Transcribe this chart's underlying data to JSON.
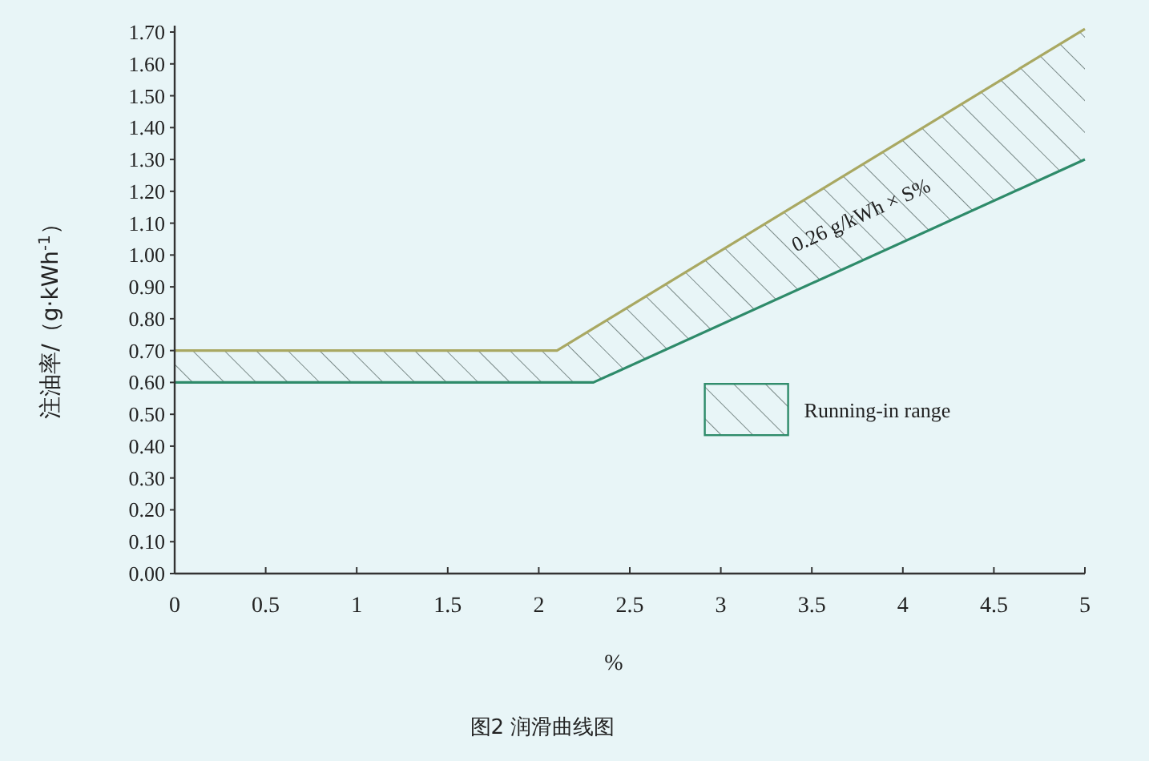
{
  "chart_data": {
    "type": "line",
    "xlabel": "%",
    "ylabel": "注油率/（g·kWh$^{-1}$）",
    "xlim": [
      0,
      5
    ],
    "ylim": [
      0,
      1.72
    ],
    "xticks": [
      0,
      0.5,
      1,
      1.5,
      2,
      2.5,
      3,
      3.5,
      4,
      4.5,
      5
    ],
    "yticks": [
      {
        "value": 0,
        "label": "0.00"
      },
      {
        "value": 0.1,
        "label": "0.10"
      },
      {
        "value": 0.2,
        "label": "0.20"
      },
      {
        "value": 0.3,
        "label": "0.30"
      },
      {
        "value": 0.4,
        "label": "0.40"
      },
      {
        "value": 0.5,
        "label": "0.50"
      },
      {
        "value": 0.6,
        "label": "0.60"
      },
      {
        "value": 0.7,
        "label": "0.70"
      },
      {
        "value": 0.8,
        "label": "0.80"
      },
      {
        "value": 0.9,
        "label": "0.90"
      },
      {
        "value": 1.0,
        "label": "1.00"
      },
      {
        "value": 1.1,
        "label": "1.10"
      },
      {
        "value": 1.2,
        "label": "1.20"
      },
      {
        "value": 1.3,
        "label": "1.30"
      },
      {
        "value": 1.4,
        "label": "1.40"
      },
      {
        "value": 1.5,
        "label": "1.50"
      },
      {
        "value": 1.6,
        "label": "1.60"
      },
      {
        "value": 1.7,
        "label": "1.70"
      }
    ],
    "series": [
      {
        "color": "#a9a862",
        "x": [
          0,
          2.1,
          5
        ],
        "values": [
          0.7,
          0.7,
          1.71
        ]
      },
      {
        "name": "Running-in range",
        "color": "#2e8b6a",
        "x": [
          0,
          2.1,
          2.3,
          5
        ],
        "values": [
          0.6,
          0.6,
          0.6,
          1.3
        ],
        "lower": [
          0.6,
          0.6,
          0.6,
          1.3
        ],
        "upper": [
          0.7,
          0.7,
          0.77,
          1.71
        ]
      }
    ],
    "legend": "right",
    "grid": false,
    "marker": "none",
    "annotations": [
      "0.26 g/kWh × S%",
      "图2 润滑曲线图"
    ]
  }
}
